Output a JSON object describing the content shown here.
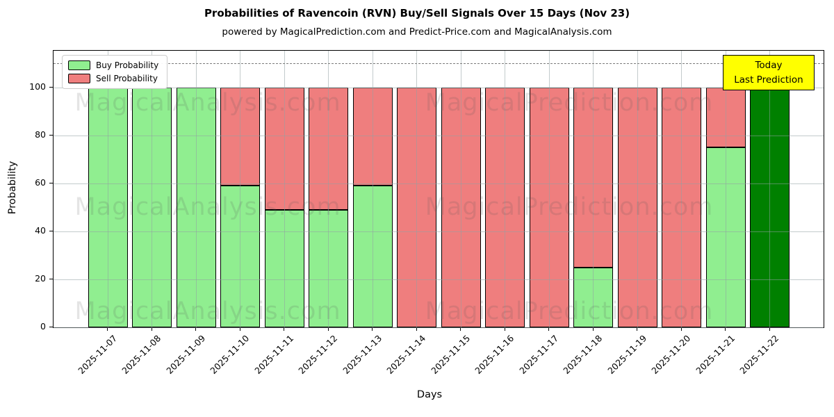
{
  "title": "Probabilities of Ravencoin (RVN) Buy/Sell Signals Over 15 Days (Nov 23)",
  "subtitle": "powered by MagicalPrediction.com and Predict-Price.com and MagicalAnalysis.com",
  "legend": {
    "items": [
      {
        "label": "Buy Probability",
        "color": "#90ee90"
      },
      {
        "label": "Sell Probability",
        "color": "#ef7e7e"
      }
    ]
  },
  "annotation_box": {
    "line1": "Today",
    "line2": "Last Prediction",
    "bg_color": "#ffff00"
  },
  "watermarks": {
    "left": "MagicalAnalysis.com",
    "right": "MagicalPrediction.com"
  },
  "axes": {
    "x_label": "Days",
    "y_label": "Probability",
    "y_ticks": [
      0,
      20,
      40,
      60,
      80,
      100
    ],
    "y_max": 115.3
  },
  "chart_data": {
    "type": "bar",
    "stacked": true,
    "title": "Probabilities of Ravencoin (RVN) Buy/Sell Signals Over 15 Days (Nov 23)",
    "xlabel": "Days",
    "ylabel": "Probability",
    "ylim": [
      0,
      115.3
    ],
    "grid": true,
    "legend_position": "upper left",
    "threshold_dashed_line_y": 110,
    "categories": [
      "2025-11-07",
      "2025-11-08",
      "2025-11-09",
      "2025-11-10",
      "2025-11-11",
      "2025-11-12",
      "2025-11-13",
      "2025-11-14",
      "2025-11-15",
      "2025-11-16",
      "2025-11-17",
      "2025-11-18",
      "2025-11-19",
      "2025-11-20",
      "2025-11-21",
      "2025-11-22"
    ],
    "series": [
      {
        "name": "Buy Probability",
        "color": "#90ee90",
        "values": [
          100,
          100,
          100,
          59,
          49,
          49,
          59,
          0,
          0,
          0,
          0,
          25,
          0,
          0,
          75,
          100
        ]
      },
      {
        "name": "Sell Probability",
        "color": "#ef7e7e",
        "values": [
          0,
          0,
          0,
          41,
          51,
          51,
          41,
          100,
          100,
          100,
          100,
          75,
          100,
          100,
          25,
          0
        ]
      }
    ],
    "today_bar": {
      "index": 15,
      "date": "2025-11-22",
      "value": 100,
      "color": "#008000",
      "note": "Today Last Prediction"
    }
  }
}
